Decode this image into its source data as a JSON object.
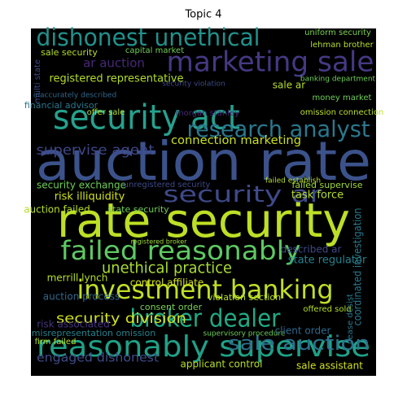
{
  "chart_data": {
    "type": "wordcloud",
    "title": "Topic 4",
    "words": [
      "auction rate",
      "rate security",
      "security act",
      "marketing sale",
      "dishonest unethical",
      "research analyst",
      "failed reasonably",
      "investment banking",
      "broker dealer",
      "reasonably supervise",
      "security ar",
      "supervise agent",
      "sale auction",
      "security division",
      "unethical practice",
      "connection marketing",
      "registered representative",
      "engaged dishonest",
      "coordinated investigation",
      "uniform security",
      "lehman brother",
      "capital market",
      "sale security",
      "ar auction",
      "money market",
      "financial advisor",
      "inaccurately described",
      "offer sale",
      "morgan stanley",
      "banking department",
      "omission connection",
      "task force",
      "failed supervise",
      "security exchange",
      "unregistered security",
      "risk illiquidity",
      "auction failed",
      "state security",
      "failed establish",
      "merrill lynch",
      "control affiliate",
      "state regulator",
      "described ar",
      "auction process",
      "violation section",
      "consent order",
      "risk associated",
      "misrepresentation omission",
      "supervisory procedure",
      "client order",
      "firm failed",
      "applicant control",
      "sale assistant",
      "offered sold",
      "cease desist",
      "security violation",
      "sale ar",
      "multi state",
      "registered broker"
    ]
  }
}
